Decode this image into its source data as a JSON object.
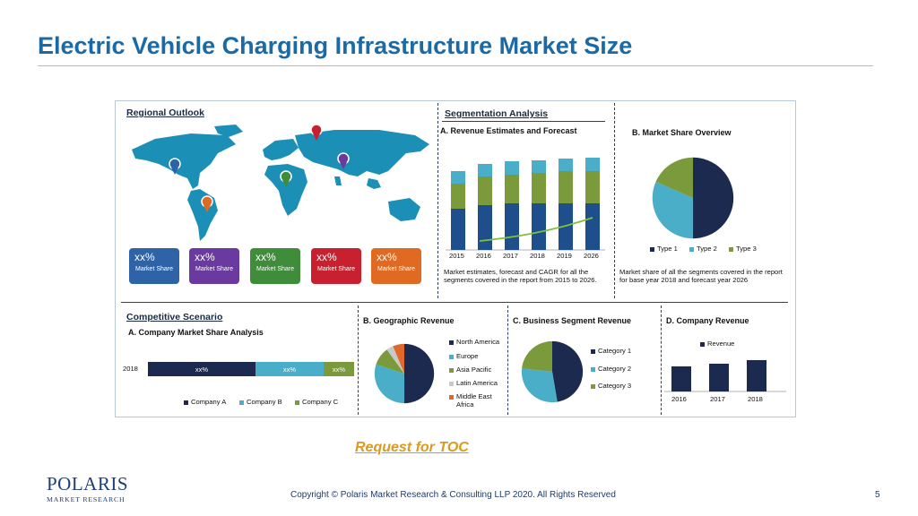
{
  "slide": {
    "title": "Electric Vehicle Charging Infrastructure Market  Size",
    "toc_link": "Request for TOC",
    "logo_main": "POLARIS",
    "logo_sub": "MARKET RESEARCH",
    "copyright": "Copyright © Polaris Market Research & Consulting LLP 2020. All Rights Reserved",
    "page_number": "5"
  },
  "infographic": {
    "regional_outlook": {
      "title": "Regional Outlook",
      "tiles": [
        {
          "pct": "xx%",
          "label": "Market Share",
          "color": "#2f63a8"
        },
        {
          "pct": "xx%",
          "label": "Market Share",
          "color": "#6b3aa0"
        },
        {
          "pct": "xx%",
          "label": "Market Share",
          "color": "#3f8c3a"
        },
        {
          "pct": "xx%",
          "label": "Market Share",
          "color": "#c8202e"
        },
        {
          "pct": "xx%",
          "label": "Market Share",
          "color": "#e06a22"
        }
      ]
    },
    "segmentation": {
      "title": "Segmentation Analysis",
      "revenue_title": "A. Revenue Estimates and Forecast",
      "revenue_years": [
        "2015",
        "2016",
        "2017",
        "2018",
        "2019",
        "2026"
      ],
      "revenue_caption": "Market estimates, forecast and CAGR for all the segments covered in the report from 2015 to 2026.",
      "share_title": "B. Market Share Overview",
      "share_legend": [
        "Type 1",
        "Type 2",
        "Type 3"
      ],
      "share_caption": "Market share of all the segments covered in the report for base year 2018 and forecast year 2026"
    },
    "competitive": {
      "title": "Competitive Scenario",
      "company_share_title": "A. Company Market Share Analysis",
      "bar_year": "2018",
      "bar_labels": [
        "xx%",
        "xx%",
        "xx%"
      ],
      "bar_legend": [
        "Company  A",
        "Company B",
        "Company C"
      ],
      "geo_title": "B. Geographic Revenue",
      "geo_legend": [
        "North America",
        "Europe",
        "Asia Pacific",
        "Latin America",
        "Middle East",
        "Africa"
      ],
      "business_title": "C. Business Segment Revenue",
      "business_legend": [
        "Category 1",
        "Category 2",
        "Category 3"
      ],
      "company_rev_title": "D. Company Revenue",
      "company_rev_legend": "Revenue",
      "company_rev_years": [
        "2016",
        "2017",
        "2018"
      ]
    },
    "colors": {
      "navy": "#1b2a4e",
      "blue": "#1f4e8c",
      "teal": "#4aaec9",
      "green": "#7a9a3c",
      "grey": "#c9c9c9",
      "orange": "#e0682a",
      "map": "#1b8fb5"
    }
  }
}
